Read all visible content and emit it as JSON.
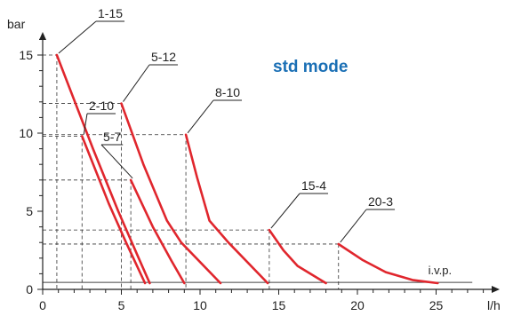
{
  "chart_data": {
    "type": "line",
    "title": "std mode",
    "title_color": "#1a6fb5",
    "series_color": "#e0262d",
    "xlabel": "l/h",
    "ylabel": "bar",
    "xlim": [
      0,
      28
    ],
    "ylim": [
      0,
      16.5
    ],
    "xticks": [
      0,
      5,
      10,
      15,
      20,
      25
    ],
    "yticks": [
      0,
      5,
      10,
      15
    ],
    "baseline": {
      "label": "i.v.p.",
      "y": 0.45
    },
    "series": [
      {
        "name": "1-15",
        "points": [
          [
            0.9,
            15
          ],
          [
            3.2,
            9
          ],
          [
            4.8,
            5
          ],
          [
            6.1,
            2
          ],
          [
            6.8,
            0.4
          ]
        ]
      },
      {
        "name": "2-10",
        "points": [
          [
            2.5,
            9.8
          ],
          [
            4.2,
            5.5
          ],
          [
            5.3,
            3
          ],
          [
            6.5,
            0.4
          ]
        ]
      },
      {
        "name": "5-7",
        "points": [
          [
            5.6,
            7
          ],
          [
            7,
            4
          ],
          [
            8.2,
            1.8
          ],
          [
            9,
            0.4
          ]
        ]
      },
      {
        "name": "5-12",
        "points": [
          [
            5.0,
            11.9
          ],
          [
            6.4,
            8
          ],
          [
            7.9,
            4.4
          ],
          [
            8.8,
            3
          ],
          [
            11.3,
            0.4
          ]
        ]
      },
      {
        "name": "8-10",
        "points": [
          [
            9.1,
            9.9
          ],
          [
            9.8,
            7.2
          ],
          [
            10.6,
            4.4
          ],
          [
            11.8,
            3
          ],
          [
            14.3,
            0.4
          ]
        ]
      },
      {
        "name": "15-4",
        "points": [
          [
            14.4,
            3.8
          ],
          [
            15.3,
            2.5
          ],
          [
            16.2,
            1.5
          ],
          [
            18.0,
            0.4
          ]
        ]
      },
      {
        "name": "20-3",
        "points": [
          [
            18.8,
            2.9
          ],
          [
            20.3,
            1.9
          ],
          [
            21.8,
            1.1
          ],
          [
            23.5,
            0.6
          ],
          [
            25.1,
            0.4
          ]
        ]
      }
    ]
  }
}
